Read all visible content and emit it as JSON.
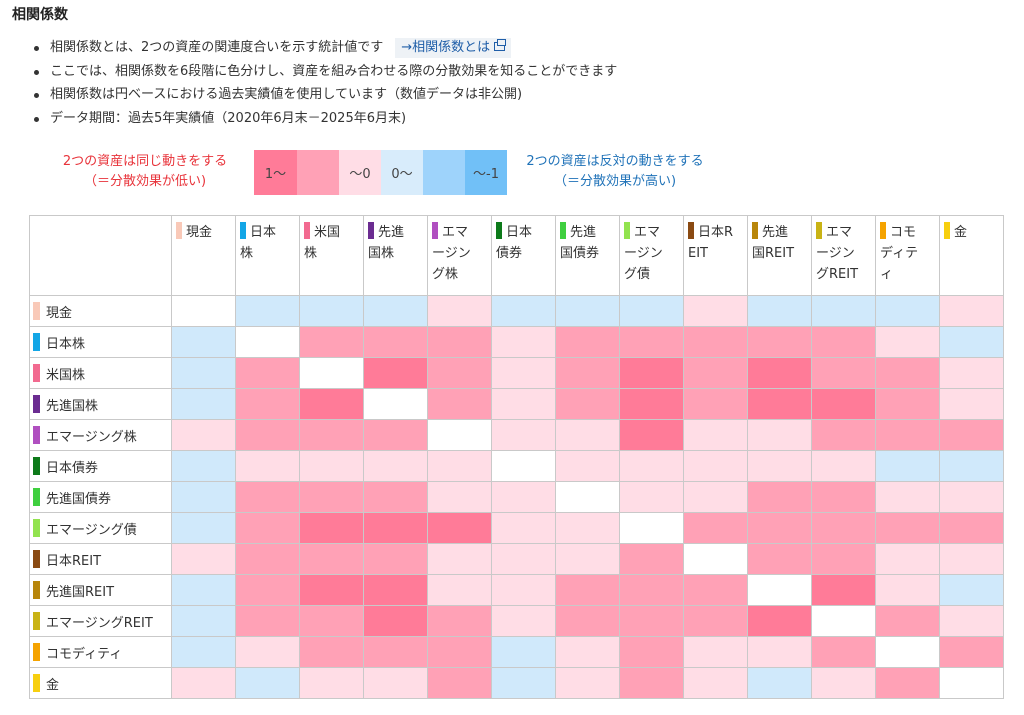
{
  "title": "相関係数",
  "bullets": [
    "相関係数とは、2つの資産の関連度合いを示す統計値です",
    "ここでは、相関係数を6段階に色分けし、資産を組み合わせる際の分散効果を知ることができます",
    "相関係数は円ベースにおける過去実績値を使用しています（数値データは非公開)",
    "データ期間：過去5年実績値（2020年6月末－2025年6月末)"
  ],
  "link_label": "→相関係数とは",
  "legend": {
    "left_line1": "2つの資産は同じ動きをする",
    "left_line2": "（＝分散効果が低い)",
    "right_line1": "2つの資産は反対の動きをする",
    "right_line2": "（＝分散効果が高い)",
    "scale_labels": [
      "1～",
      "",
      "～0",
      "0～",
      "",
      "～-1"
    ],
    "scale_colors": [
      "#ff7b98",
      "#ffa1b6",
      "#ffdde6",
      "#d8ecfb",
      "#9ed3fb",
      "#71c0f7"
    ]
  },
  "assets": [
    {
      "col": [
        "現金"
      ],
      "row": "現金",
      "color": "#f9c9b8"
    },
    {
      "col": [
        "日本",
        "株"
      ],
      "row": "日本株",
      "color": "#13a6e6"
    },
    {
      "col": [
        "米国",
        "株"
      ],
      "row": "米国株",
      "color": "#f26a90"
    },
    {
      "col": [
        "先進",
        "国株"
      ],
      "row": "先進国株",
      "color": "#6b2c91"
    },
    {
      "col": [
        "エマ",
        "ージン",
        "グ株"
      ],
      "row": "エマージング株",
      "color": "#b04fc0"
    },
    {
      "col": [
        "日本",
        "債券"
      ],
      "row": "日本債券",
      "color": "#0d7a1a"
    },
    {
      "col": [
        "先進",
        "国債券"
      ],
      "row": "先進国債券",
      "color": "#3fcf3f"
    },
    {
      "col": [
        "エマ",
        "ージン",
        "グ債"
      ],
      "row": "エマージング債",
      "color": "#92e34f"
    },
    {
      "col": [
        "日本R",
        "EIT"
      ],
      "row": "日本REIT",
      "color": "#8a4a12"
    },
    {
      "col": [
        "先進",
        "国REIT"
      ],
      "row": "先進国REIT",
      "color": "#b8860b"
    },
    {
      "col": [
        "エマ",
        "ージン",
        "グREIT"
      ],
      "row": "エマージングREIT",
      "color": "#c9b315"
    },
    {
      "col": [
        "コモ",
        "ディテ",
        "ィ"
      ],
      "row": "コモディティ",
      "color": "#f5a300"
    },
    {
      "col": [
        "金"
      ],
      "row": "金",
      "color": "#f7cf0f"
    }
  ],
  "matrix_levels": [
    [
      0,
      4,
      4,
      4,
      3,
      4,
      4,
      4,
      3,
      4,
      4,
      4,
      3
    ],
    [
      4,
      0,
      2,
      2,
      2,
      3,
      2,
      2,
      2,
      2,
      2,
      3,
      4
    ],
    [
      4,
      2,
      0,
      1,
      2,
      3,
      2,
      1,
      2,
      1,
      2,
      2,
      3
    ],
    [
      4,
      2,
      1,
      0,
      2,
      3,
      2,
      1,
      2,
      1,
      1,
      2,
      3
    ],
    [
      3,
      2,
      2,
      2,
      0,
      3,
      3,
      1,
      3,
      3,
      2,
      2,
      2
    ],
    [
      4,
      3,
      3,
      3,
      3,
      0,
      3,
      3,
      3,
      3,
      3,
      4,
      4
    ],
    [
      4,
      2,
      2,
      2,
      3,
      3,
      0,
      3,
      3,
      2,
      2,
      3,
      3
    ],
    [
      4,
      2,
      1,
      1,
      1,
      3,
      3,
      0,
      2,
      2,
      2,
      2,
      2
    ],
    [
      3,
      2,
      2,
      2,
      3,
      3,
      3,
      2,
      0,
      2,
      2,
      3,
      3
    ],
    [
      4,
      2,
      1,
      1,
      3,
      3,
      2,
      2,
      2,
      0,
      1,
      3,
      4
    ],
    [
      4,
      2,
      2,
      1,
      2,
      3,
      2,
      2,
      2,
      1,
      0,
      2,
      3
    ],
    [
      4,
      3,
      2,
      2,
      2,
      4,
      3,
      2,
      3,
      3,
      2,
      0,
      2
    ],
    [
      3,
      4,
      3,
      3,
      2,
      4,
      3,
      2,
      3,
      4,
      3,
      2,
      0
    ]
  ],
  "level_colors": [
    "#ffffff",
    "#ff7b98",
    "#ffa1b6",
    "#ffdde6",
    "#d0e9fb"
  ]
}
